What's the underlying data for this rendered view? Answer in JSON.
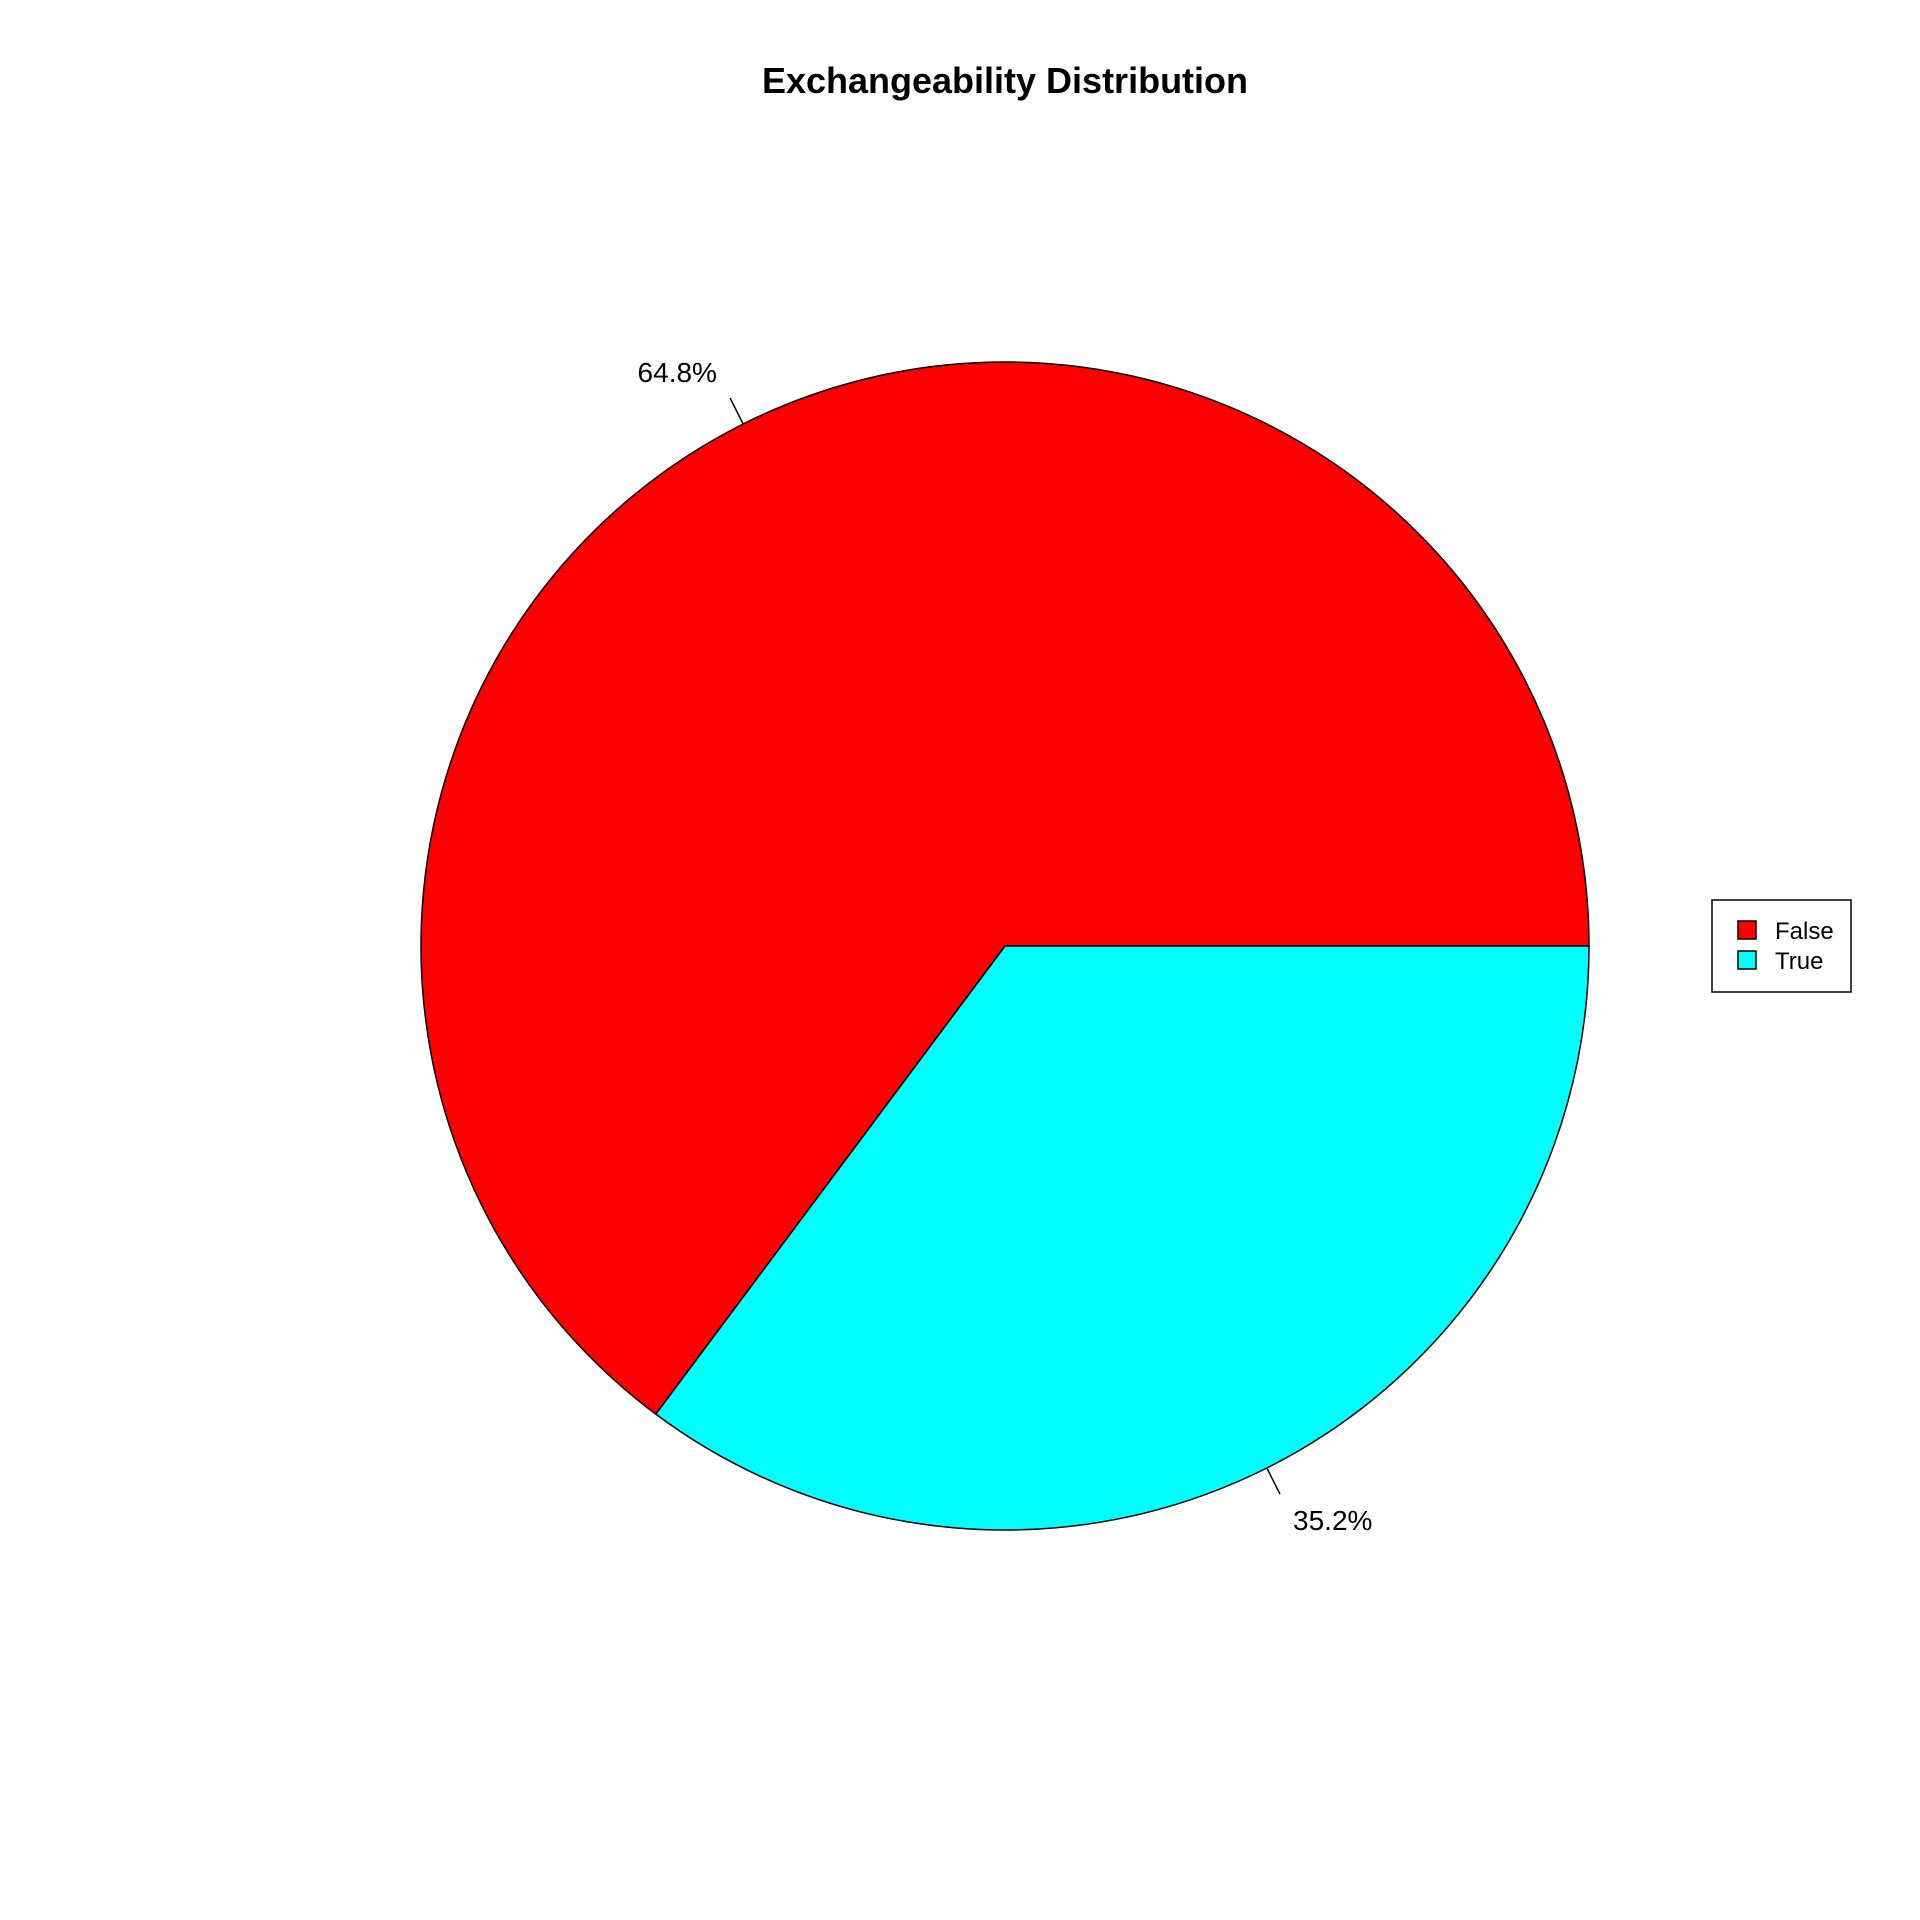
{
  "chart_data": {
    "type": "pie",
    "title": "Exchangeability Distribution",
    "slices": [
      {
        "label": "False",
        "value": 64.8,
        "label_text": "64.8%",
        "color": "#FF0000"
      },
      {
        "label": "True",
        "value": 35.2,
        "label_text": "35.2%",
        "color": "#00FFFF"
      }
    ],
    "legend": {
      "placement": "right",
      "entries": [
        "False",
        "True"
      ]
    }
  }
}
